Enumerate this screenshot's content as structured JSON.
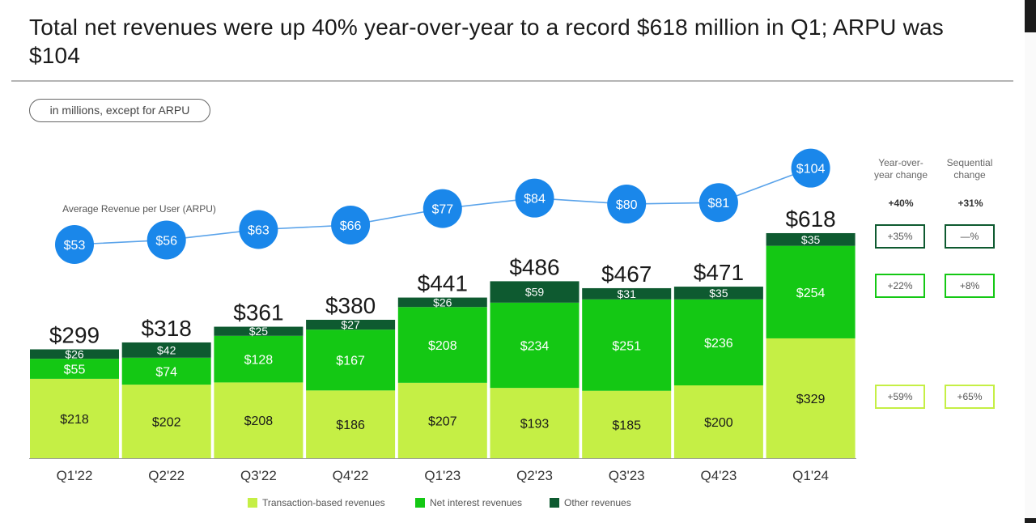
{
  "title": "Total net revenues were up 40% year-over-year to a record $618 million in Q1; ARPU was $104",
  "units_label": "in millions, except for ARPU",
  "arpu_label": "Average Revenue per User (ARPU)",
  "colors": {
    "transaction": "#c5ef45",
    "net_interest": "#14c814",
    "other": "#0e5a30",
    "arpu": "#1a87ea",
    "arpu_line": "#5aa3ea"
  },
  "change_table": {
    "headers": [
      "Year-over-year change",
      "Sequential change"
    ],
    "headers_display": [
      [
        "Year-over-",
        "year change"
      ],
      [
        "Sequential",
        "change"
      ]
    ],
    "total": [
      "+40%",
      "+31%"
    ],
    "other": [
      "+35%",
      "—%"
    ],
    "net_interest": [
      "+22%",
      "+8%"
    ],
    "transaction": [
      "+59%",
      "+65%"
    ]
  },
  "chart_data": {
    "type": "bar",
    "stacked": true,
    "categories": [
      "Q1'22",
      "Q2'22",
      "Q3'22",
      "Q4'22",
      "Q1'23",
      "Q2'23",
      "Q3'23",
      "Q4'23",
      "Q1'24"
    ],
    "series": [
      {
        "name": "Transaction-based revenues",
        "values": [
          218,
          202,
          208,
          186,
          207,
          193,
          185,
          200,
          329
        ]
      },
      {
        "name": "Net interest revenues",
        "values": [
          55,
          74,
          128,
          167,
          208,
          234,
          251,
          236,
          254
        ]
      },
      {
        "name": "Other revenues",
        "values": [
          26,
          42,
          25,
          27,
          26,
          59,
          31,
          35,
          35
        ]
      }
    ],
    "totals": [
      299,
      318,
      361,
      380,
      441,
      486,
      467,
      471,
      618
    ],
    "totals_labels": [
      "$299",
      "$318",
      "$361",
      "$380",
      "$441",
      "$486",
      "$467",
      "$471",
      "$618"
    ],
    "arpu": {
      "name": "Average Revenue per User (ARPU)",
      "values": [
        53,
        56,
        63,
        66,
        77,
        84,
        80,
        81,
        104
      ]
    },
    "value_prefix": "$",
    "legend": "bottom"
  }
}
